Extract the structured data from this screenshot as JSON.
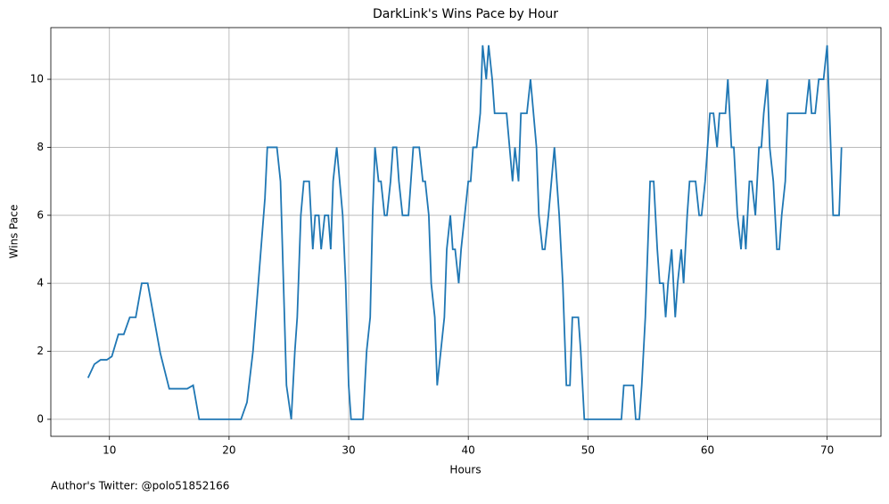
{
  "chart_data": {
    "type": "line",
    "title": "DarkLink's Wins Pace by Hour",
    "x_label": "Hours",
    "y_label": "Wins Pace",
    "annotation": "Author's Twitter: @polo51852166",
    "color": "#1f77b4",
    "grid": true,
    "xlim": [
      5.1,
      74.5
    ],
    "ylim": [
      -0.5,
      11.52
    ],
    "xticks": [
      10,
      20,
      30,
      40,
      50,
      60,
      70
    ],
    "yticks": [
      0,
      2,
      4,
      6,
      8,
      10
    ],
    "x": [
      8.21,
      8.74,
      9.26,
      9.78,
      10.2,
      10.75,
      11.2,
      11.7,
      12.2,
      12.7,
      13.2,
      14.25,
      15,
      16.5,
      17.0,
      17.5,
      21,
      21.5,
      22,
      23,
      23.2,
      24,
      24.3,
      24.8,
      25.2,
      25.5,
      25.7,
      26,
      26.25,
      26.7,
      27,
      27.2,
      27.5,
      27.7,
      28.0,
      28.3,
      28.5,
      28.7,
      29,
      29.5,
      29.75,
      30,
      30.2,
      31.2,
      31.5,
      31.8,
      32,
      32.2,
      32.5,
      32.7,
      33,
      33.2,
      33.5,
      33.7,
      34,
      34.2,
      34.5,
      35,
      35.4,
      35.9,
      36.2,
      36.4,
      36.7,
      36.9,
      37.2,
      37.4,
      37.7,
      38,
      38.2,
      38.5,
      38.7,
      38.9,
      39.2,
      39.4,
      39.7,
      40,
      40.2,
      40.4,
      40.7,
      41,
      41.2,
      41.5,
      41.7,
      42,
      42.2,
      43.2,
      43.7,
      43.9,
      44.2,
      44.4,
      44.9,
      45.2,
      45.7,
      45.9,
      46.2,
      46.4,
      46.7,
      47.2,
      47.6,
      47.9,
      48.2,
      48.5,
      48.7,
      49.2,
      49.4,
      49.7,
      52.8,
      53,
      53.8,
      54,
      54.3,
      54.5,
      54.8,
      55,
      55.2,
      55.5,
      55.8,
      56,
      56.3,
      56.5,
      56.7,
      57,
      57.3,
      57.5,
      57.8,
      58,
      58.3,
      58.5,
      59,
      59.3,
      59.5,
      59.8,
      60,
      60.2,
      60.5,
      60.8,
      61,
      61.5,
      61.7,
      62,
      62.2,
      62.5,
      62.8,
      63,
      63.2,
      63.5,
      63.7,
      64,
      64.3,
      64.5,
      64.7,
      65,
      65.2,
      65.5,
      65.8,
      66,
      66.2,
      66.5,
      66.7,
      68.2,
      68.5,
      68.7,
      69,
      69.3,
      69.7,
      70,
      70.2,
      70.5,
      71,
      71.2
    ],
    "values": [
      1.22,
      1.62,
      1.75,
      1.75,
      1.85,
      2.5,
      2.5,
      3,
      3,
      4,
      4,
      1.95,
      0.9,
      0.9,
      1.0,
      0,
      0,
      0.5,
      2,
      6.5,
      8,
      8,
      7,
      1,
      0,
      2,
      3,
      6,
      7,
      7,
      5,
      6,
      6,
      5,
      6,
      6,
      5,
      7,
      8,
      6,
      4,
      1,
      0,
      0,
      2,
      3,
      6,
      8,
      7,
      7,
      6,
      6,
      7,
      8,
      8,
      7,
      6,
      6,
      8,
      8,
      7,
      7,
      6,
      4,
      3,
      1,
      2,
      3,
      5,
      6,
      5,
      5,
      4,
      5,
      6,
      7,
      7,
      8,
      8,
      9,
      11,
      10,
      11,
      10,
      9,
      9,
      7,
      8,
      7,
      9,
      9,
      10,
      8,
      6,
      5,
      5,
      6,
      8,
      6,
      4,
      1,
      1,
      3,
      3,
      2,
      0,
      0,
      1,
      1,
      0,
      0,
      1,
      3,
      5,
      7,
      7,
      5,
      4,
      4,
      3,
      4,
      5,
      3,
      4,
      5,
      4,
      6,
      7,
      7,
      6,
      6,
      7,
      8,
      9,
      9,
      8,
      9,
      9,
      10,
      8,
      8,
      6,
      5,
      6,
      5,
      7,
      7,
      6,
      8,
      8,
      9,
      10,
      8,
      7,
      5,
      5,
      6,
      7,
      9,
      9,
      10,
      9,
      9,
      10,
      10,
      11,
      9,
      6,
      6,
      8
    ]
  }
}
